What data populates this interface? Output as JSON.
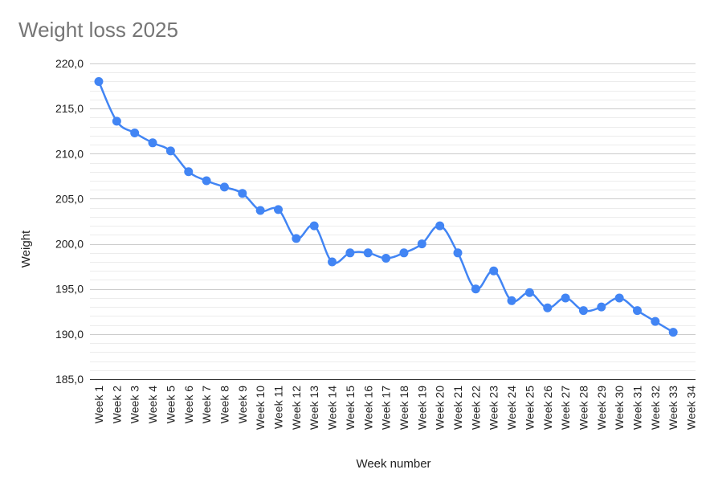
{
  "chart_data": {
    "type": "line",
    "title": "Weight loss 2025",
    "xlabel": "Week number",
    "ylabel": "Weight",
    "ylim": [
      185,
      220
    ],
    "y_major_step": 5,
    "y_minor_per_major": 5,
    "y_tick_labels": [
      "185,0",
      "190,0",
      "195,0",
      "200,0",
      "205,0",
      "210,0",
      "215,0",
      "220,0"
    ],
    "grid": true,
    "legend": "none",
    "categories": [
      "Week 1",
      "Week 2",
      "Week 3",
      "Week 4",
      "Week 5",
      "Week 6",
      "Week 7",
      "Week 8",
      "Week 9",
      "Week 10",
      "Week 11",
      "Week 12",
      "Week 13",
      "Week 14",
      "Week 15",
      "Week 16",
      "Week 17",
      "Week 18",
      "Week 19",
      "Week 20",
      "Week 21",
      "Week 22",
      "Week 23",
      "Week 24",
      "Week 25",
      "Week 26",
      "Week 27",
      "Week 28",
      "Week 29",
      "Week 30",
      "Week 31",
      "Week 32",
      "Week 33",
      "Week 34"
    ],
    "series": [
      {
        "color": "#4285f4",
        "values": [
          218.0,
          213.6,
          212.3,
          211.2,
          210.3,
          208.0,
          207.0,
          206.3,
          205.6,
          203.7,
          203.8,
          200.6,
          202.0,
          198.0,
          199.0,
          199.0,
          198.4,
          199.0,
          200.0,
          202.0,
          199.0,
          195.0,
          197.0,
          193.7,
          194.6,
          192.9,
          194.0,
          192.6,
          193.0,
          194.0,
          192.6,
          191.4,
          190.2,
          null
        ]
      }
    ]
  }
}
